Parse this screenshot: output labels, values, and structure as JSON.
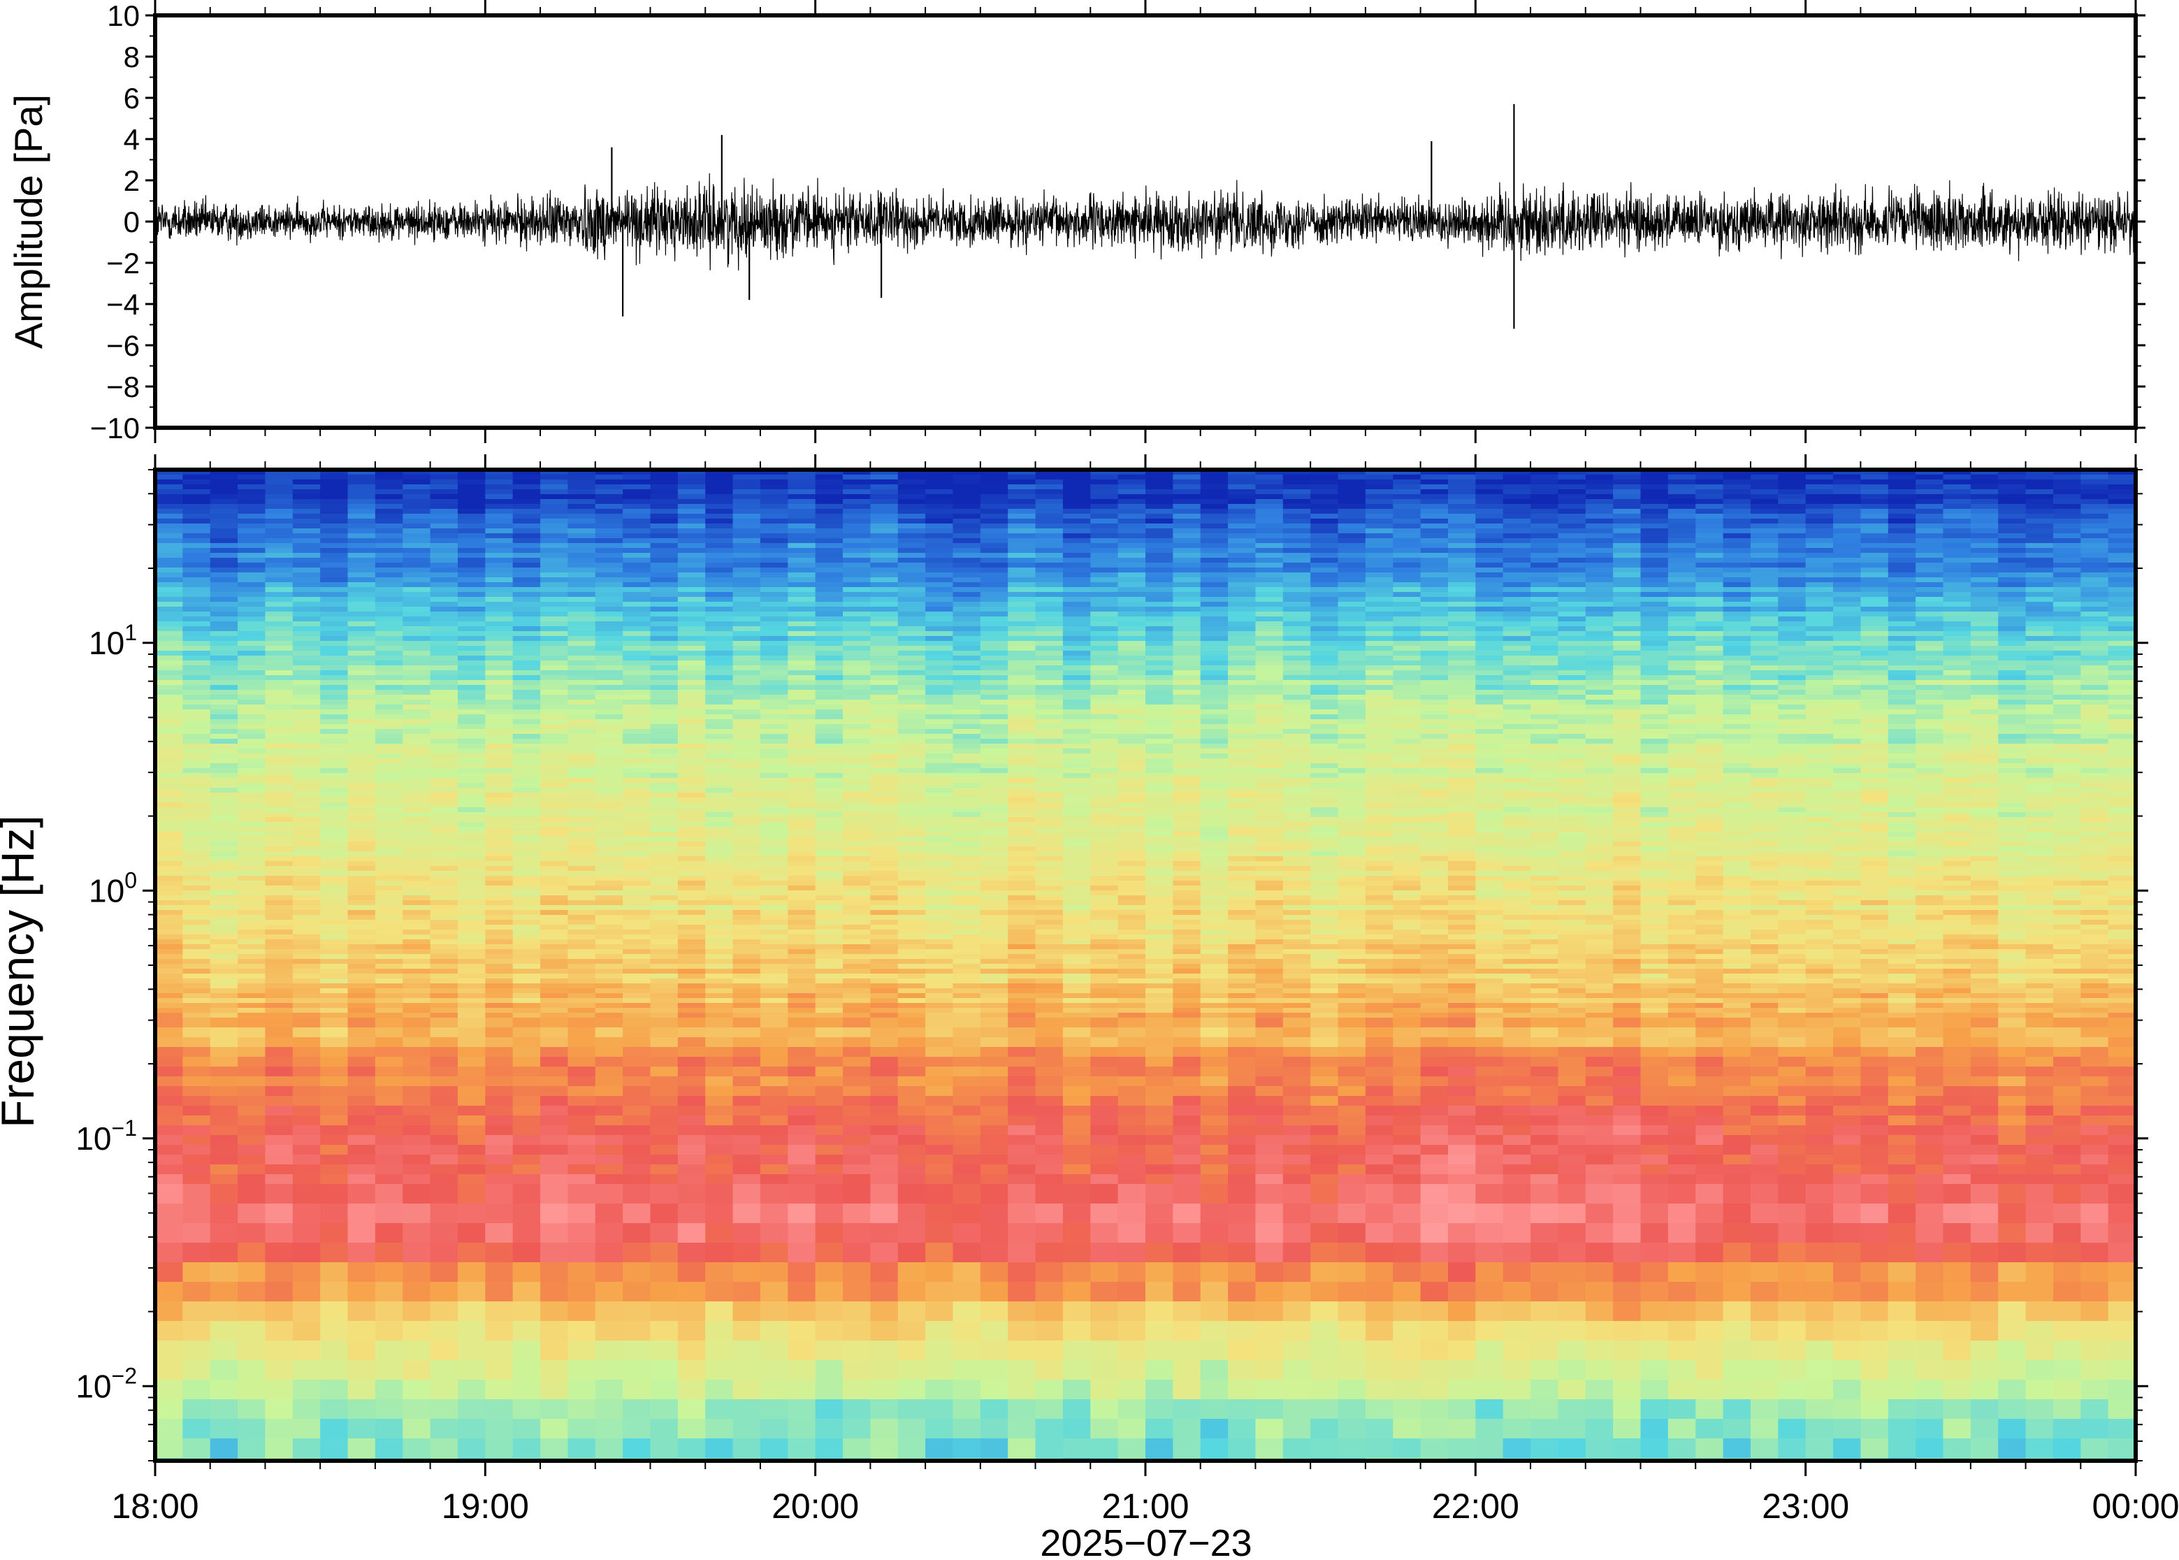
{
  "chart_data": [
    {
      "type": "line",
      "panel": "waveform",
      "ylabel": "Amplitude [Pa]",
      "xlabel": "",
      "xlim": [
        "18:00",
        "00:00"
      ],
      "ylim": [
        -10,
        10
      ],
      "yticks": [
        10,
        8,
        6,
        4,
        2,
        0,
        -2,
        -4,
        -6,
        -8,
        -10
      ],
      "ytick_labels": [
        "10",
        "8",
        "6",
        "4",
        "2",
        "0",
        "−2",
        "−4",
        "−6",
        "−8",
        "−10"
      ],
      "grid": false,
      "series": [
        {
          "color": "#000000",
          "envelope_hour": [
            0,
            0.5,
            1,
            1.2,
            1.35,
            1.5,
            1.75,
            2,
            2.5,
            3,
            3.3,
            3.6,
            4,
            4.1,
            4.3,
            4.6,
            5,
            5.5,
            6
          ],
          "envelope_pa": [
            1.3,
            1.0,
            1.2,
            1.6,
            2.2,
            2.0,
            2.2,
            1.9,
            1.4,
            1.6,
            1.8,
            1.3,
            1.5,
            2.2,
            2.0,
            1.6,
            1.7,
            1.8,
            1.6
          ],
          "spikes": [
            {
              "time": "19:23",
              "value": 3.6
            },
            {
              "time": "19:25",
              "value": -4.6
            },
            {
              "time": "19:43",
              "value": 4.2
            },
            {
              "time": "19:48",
              "value": -3.8
            },
            {
              "time": "20:12",
              "value": -3.7
            },
            {
              "time": "22:07",
              "value": 5.7
            },
            {
              "time": "22:07",
              "value": -5.2
            },
            {
              "time": "21:52",
              "value": 3.9
            }
          ]
        }
      ]
    },
    {
      "type": "heatmap",
      "panel": "spectrogram",
      "ylabel": "Frequency [Hz]",
      "xlabel": "2025−07−23",
      "xlim": [
        "18:00",
        "00:00"
      ],
      "ylim": [
        0.005,
        50
      ],
      "yscale": "log",
      "ytick_base": "10",
      "ytick_exponents": [
        "−2",
        "−1",
        "0",
        "1"
      ],
      "xtick_labels": [
        "18:00",
        "19:00",
        "20:00",
        "21:00",
        "22:00",
        "23:00",
        "00:00"
      ],
      "colormap": "spectral (blue low → red high power)",
      "colors": [
        "#1029b5",
        "#2f7fe0",
        "#55d6e0",
        "#c9f59a",
        "#f4e27d",
        "#f7a24a",
        "#ee5a55",
        "#ff9a9a"
      ],
      "power_profile": {
        "log10_freq": [
          1.7,
          1.5,
          1.2,
          1.0,
          0.7,
          0.3,
          0.0,
          -0.4,
          -0.7,
          -1.0,
          -1.3,
          -1.6,
          -1.8,
          -2.0,
          -2.3
        ],
        "level": [
          0.0,
          0.08,
          0.22,
          0.32,
          0.42,
          0.5,
          0.55,
          0.64,
          0.74,
          0.84,
          0.86,
          0.68,
          0.5,
          0.4,
          0.33
        ]
      }
    }
  ]
}
